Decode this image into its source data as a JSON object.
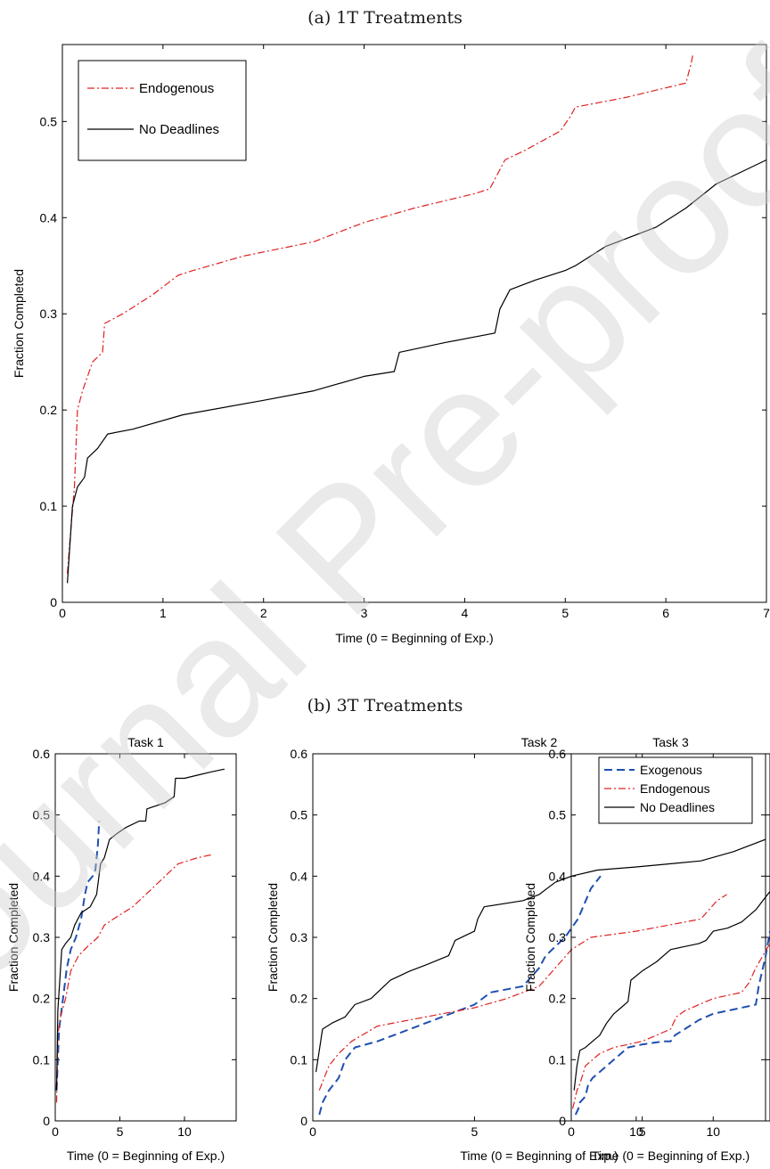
{
  "captions": {
    "a": "(a) 1T Treatments",
    "b": "(b) 3T Treatments"
  },
  "watermark": "Journal Pre-proof",
  "colors": {
    "exogenous": "#1f4fb0",
    "endogenous": "#e02020",
    "no_deadlines": "#000000"
  },
  "chart_data": [
    {
      "type": "line",
      "panel": "a",
      "title": "",
      "xlabel": "Time (0 = Beginning of Exp.)",
      "ylabel": "Fraction Completed",
      "xlim": [
        0,
        7
      ],
      "ylim": [
        0,
        0.58
      ],
      "xticks": [
        0,
        1,
        2,
        3,
        4,
        5,
        6,
        7
      ],
      "yticks": [
        0,
        0.1,
        0.2,
        0.3,
        0.4,
        0.5
      ],
      "legend_position": "top-left",
      "series": [
        {
          "name": "Endogenous",
          "style": "dashdot",
          "x": [
            0.05,
            0.08,
            0.12,
            0.15,
            0.2,
            0.3,
            0.4,
            0.42,
            0.6,
            0.9,
            1.15,
            1.3,
            1.8,
            2.5,
            3.0,
            3.5,
            4.1,
            4.25,
            4.3,
            4.4,
            4.6,
            4.95,
            5.05,
            5.1,
            5.6,
            6.2,
            6.25,
            6.27
          ],
          "y": [
            0.03,
            0.07,
            0.12,
            0.2,
            0.22,
            0.25,
            0.26,
            0.29,
            0.3,
            0.32,
            0.34,
            0.345,
            0.36,
            0.375,
            0.395,
            0.41,
            0.425,
            0.43,
            0.44,
            0.46,
            0.47,
            0.49,
            0.505,
            0.515,
            0.525,
            0.54,
            0.56,
            0.57
          ]
        },
        {
          "name": "No Deadlines",
          "style": "solid",
          "x": [
            0.05,
            0.1,
            0.15,
            0.22,
            0.25,
            0.35,
            0.45,
            0.7,
            1.2,
            2.0,
            2.5,
            3.0,
            3.3,
            3.35,
            3.8,
            4.3,
            4.35,
            4.45,
            4.7,
            5.0,
            5.1,
            5.4,
            5.9,
            6.2,
            6.5,
            7.0
          ],
          "y": [
            0.02,
            0.1,
            0.12,
            0.13,
            0.15,
            0.16,
            0.175,
            0.18,
            0.195,
            0.21,
            0.22,
            0.235,
            0.24,
            0.26,
            0.27,
            0.28,
            0.305,
            0.325,
            0.335,
            0.345,
            0.35,
            0.37,
            0.39,
            0.41,
            0.435,
            0.46
          ]
        }
      ]
    },
    {
      "type": "line",
      "panel": "b1",
      "title": "Task 1",
      "xlabel": "Time (0 = Beginning of Exp.)",
      "ylabel": "Fraction Completed",
      "xlim": [
        0,
        14
      ],
      "ylim": [
        0,
        0.6
      ],
      "xticks": [
        0,
        5,
        10
      ],
      "yticks": [
        0,
        0.1,
        0.2,
        0.3,
        0.4,
        0.5,
        0.6
      ],
      "series": [
        {
          "name": "Exogenous",
          "style": "dashed",
          "x": [
            0.1,
            0.3,
            0.6,
            0.9,
            1.2,
            1.6,
            2.0,
            2.3,
            2.5,
            2.9,
            3.1,
            3.3,
            3.4
          ],
          "y": [
            0.05,
            0.15,
            0.2,
            0.25,
            0.28,
            0.3,
            0.33,
            0.37,
            0.39,
            0.4,
            0.41,
            0.45,
            0.49
          ]
        },
        {
          "name": "Endogenous",
          "style": "dashdot",
          "x": [
            0.1,
            0.2,
            0.4,
            0.8,
            1.2,
            1.8,
            2.5,
            3.3,
            3.8,
            4.5,
            6,
            7.5,
            9.5,
            11,
            12.1
          ],
          "y": [
            0.03,
            0.14,
            0.17,
            0.2,
            0.245,
            0.27,
            0.285,
            0.3,
            0.32,
            0.33,
            0.35,
            0.38,
            0.42,
            0.43,
            0.435
          ]
        },
        {
          "name": "No Deadlines",
          "style": "solid",
          "x": [
            0.1,
            0.2,
            0.5,
            0.8,
            1.2,
            1.5,
            2.0,
            2.7,
            3.2,
            3.5,
            3.8,
            4.2,
            4.8,
            5.5,
            6.5,
            7.0,
            7.1,
            8.5,
            9.2,
            9.3,
            10,
            11,
            12,
            13.1
          ],
          "y": [
            0.05,
            0.18,
            0.28,
            0.29,
            0.3,
            0.32,
            0.34,
            0.35,
            0.37,
            0.42,
            0.43,
            0.46,
            0.47,
            0.48,
            0.49,
            0.49,
            0.51,
            0.52,
            0.53,
            0.56,
            0.56,
            0.565,
            0.57,
            0.575
          ]
        }
      ]
    },
    {
      "type": "line",
      "panel": "b2",
      "title": "Task 2",
      "xlabel": "Time (0 = Beginning of Exp.)",
      "ylabel": "Fraction Completed",
      "xlim": [
        0,
        14
      ],
      "ylim": [
        0,
        0.6
      ],
      "xticks": [
        0,
        5,
        10
      ],
      "yticks": [
        0,
        0.1,
        0.2,
        0.3,
        0.4,
        0.5,
        0.6
      ],
      "series": [
        {
          "name": "Exogenous",
          "style": "dashed",
          "x": [
            0.2,
            0.3,
            0.5,
            0.8,
            1.0,
            1.3,
            2,
            3,
            4,
            5,
            5.5,
            6.5,
            7,
            7.2,
            7.8,
            8.2,
            8.6,
            8.9
          ],
          "y": [
            0.01,
            0.03,
            0.05,
            0.07,
            0.1,
            0.12,
            0.13,
            0.15,
            0.17,
            0.19,
            0.21,
            0.22,
            0.25,
            0.27,
            0.3,
            0.33,
            0.38,
            0.4
          ]
        },
        {
          "name": "Endogenous",
          "style": "dashdot",
          "x": [
            0.2,
            0.5,
            0.8,
            1.2,
            2,
            3,
            4,
            5,
            6,
            7,
            7.5,
            8,
            8.6,
            10,
            11,
            12,
            12.5,
            12.8
          ],
          "y": [
            0.05,
            0.09,
            0.11,
            0.13,
            0.155,
            0.165,
            0.175,
            0.185,
            0.2,
            0.22,
            0.25,
            0.28,
            0.3,
            0.31,
            0.32,
            0.33,
            0.36,
            0.37
          ]
        },
        {
          "name": "No Deadlines",
          "style": "solid",
          "x": [
            0.1,
            0.3,
            0.6,
            1,
            1.3,
            1.8,
            2.4,
            3,
            3.5,
            4.2,
            4.4,
            5,
            5.1,
            5.3,
            6.5,
            7,
            7.5,
            8,
            8.8,
            10,
            11,
            12,
            13,
            14
          ],
          "y": [
            0.08,
            0.15,
            0.16,
            0.17,
            0.19,
            0.2,
            0.23,
            0.245,
            0.255,
            0.27,
            0.295,
            0.31,
            0.33,
            0.35,
            0.36,
            0.37,
            0.39,
            0.4,
            0.41,
            0.415,
            0.42,
            0.425,
            0.44,
            0.46
          ]
        }
      ]
    },
    {
      "type": "line",
      "panel": "b3",
      "title": "Task 3",
      "xlabel": "Time (0 = Beginning of Exp.)",
      "ylabel": "Fraction Completed",
      "xlim": [
        0,
        14
      ],
      "ylim": [
        0,
        0.6
      ],
      "xticks": [
        0,
        5,
        10
      ],
      "yticks": [
        0,
        0.1,
        0.2,
        0.3,
        0.4,
        0.5,
        0.6
      ],
      "legend_position": "top-right",
      "series": [
        {
          "name": "Exogenous",
          "style": "dashed",
          "x": [
            0.3,
            0.5,
            0.6,
            1,
            1.2,
            1.5,
            2,
            3,
            4,
            5,
            6.5,
            7,
            7.3,
            8,
            9,
            10,
            11,
            12,
            13,
            13.2,
            13.7,
            14
          ],
          "y": [
            0.01,
            0.02,
            0.03,
            0.04,
            0.06,
            0.07,
            0.08,
            0.1,
            0.12,
            0.125,
            0.13,
            0.13,
            0.14,
            0.15,
            0.165,
            0.175,
            0.18,
            0.185,
            0.19,
            0.22,
            0.27,
            0.31
          ]
        },
        {
          "name": "Endogenous",
          "style": "dashdot",
          "x": [
            0.1,
            0.4,
            0.6,
            1,
            1.5,
            2,
            3,
            4,
            5,
            6,
            7,
            7.4,
            8,
            9,
            10,
            11,
            12,
            12.5,
            13,
            13.5,
            14
          ],
          "y": [
            0.02,
            0.05,
            0.06,
            0.09,
            0.1,
            0.11,
            0.12,
            0.125,
            0.13,
            0.14,
            0.15,
            0.17,
            0.18,
            0.19,
            0.2,
            0.205,
            0.21,
            0.225,
            0.25,
            0.27,
            0.29
          ]
        },
        {
          "name": "No Deadlines",
          "style": "solid",
          "x": [
            0.2,
            0.4,
            0.6,
            1,
            1.5,
            2,
            2.5,
            3,
            3.5,
            4,
            4.2,
            5,
            6,
            7,
            8,
            9,
            9.5,
            10,
            11,
            12,
            13,
            13.5,
            14
          ],
          "y": [
            0.05,
            0.09,
            0.115,
            0.12,
            0.13,
            0.14,
            0.16,
            0.175,
            0.185,
            0.195,
            0.23,
            0.245,
            0.26,
            0.28,
            0.285,
            0.29,
            0.295,
            0.31,
            0.315,
            0.325,
            0.345,
            0.36,
            0.375
          ]
        }
      ]
    }
  ]
}
